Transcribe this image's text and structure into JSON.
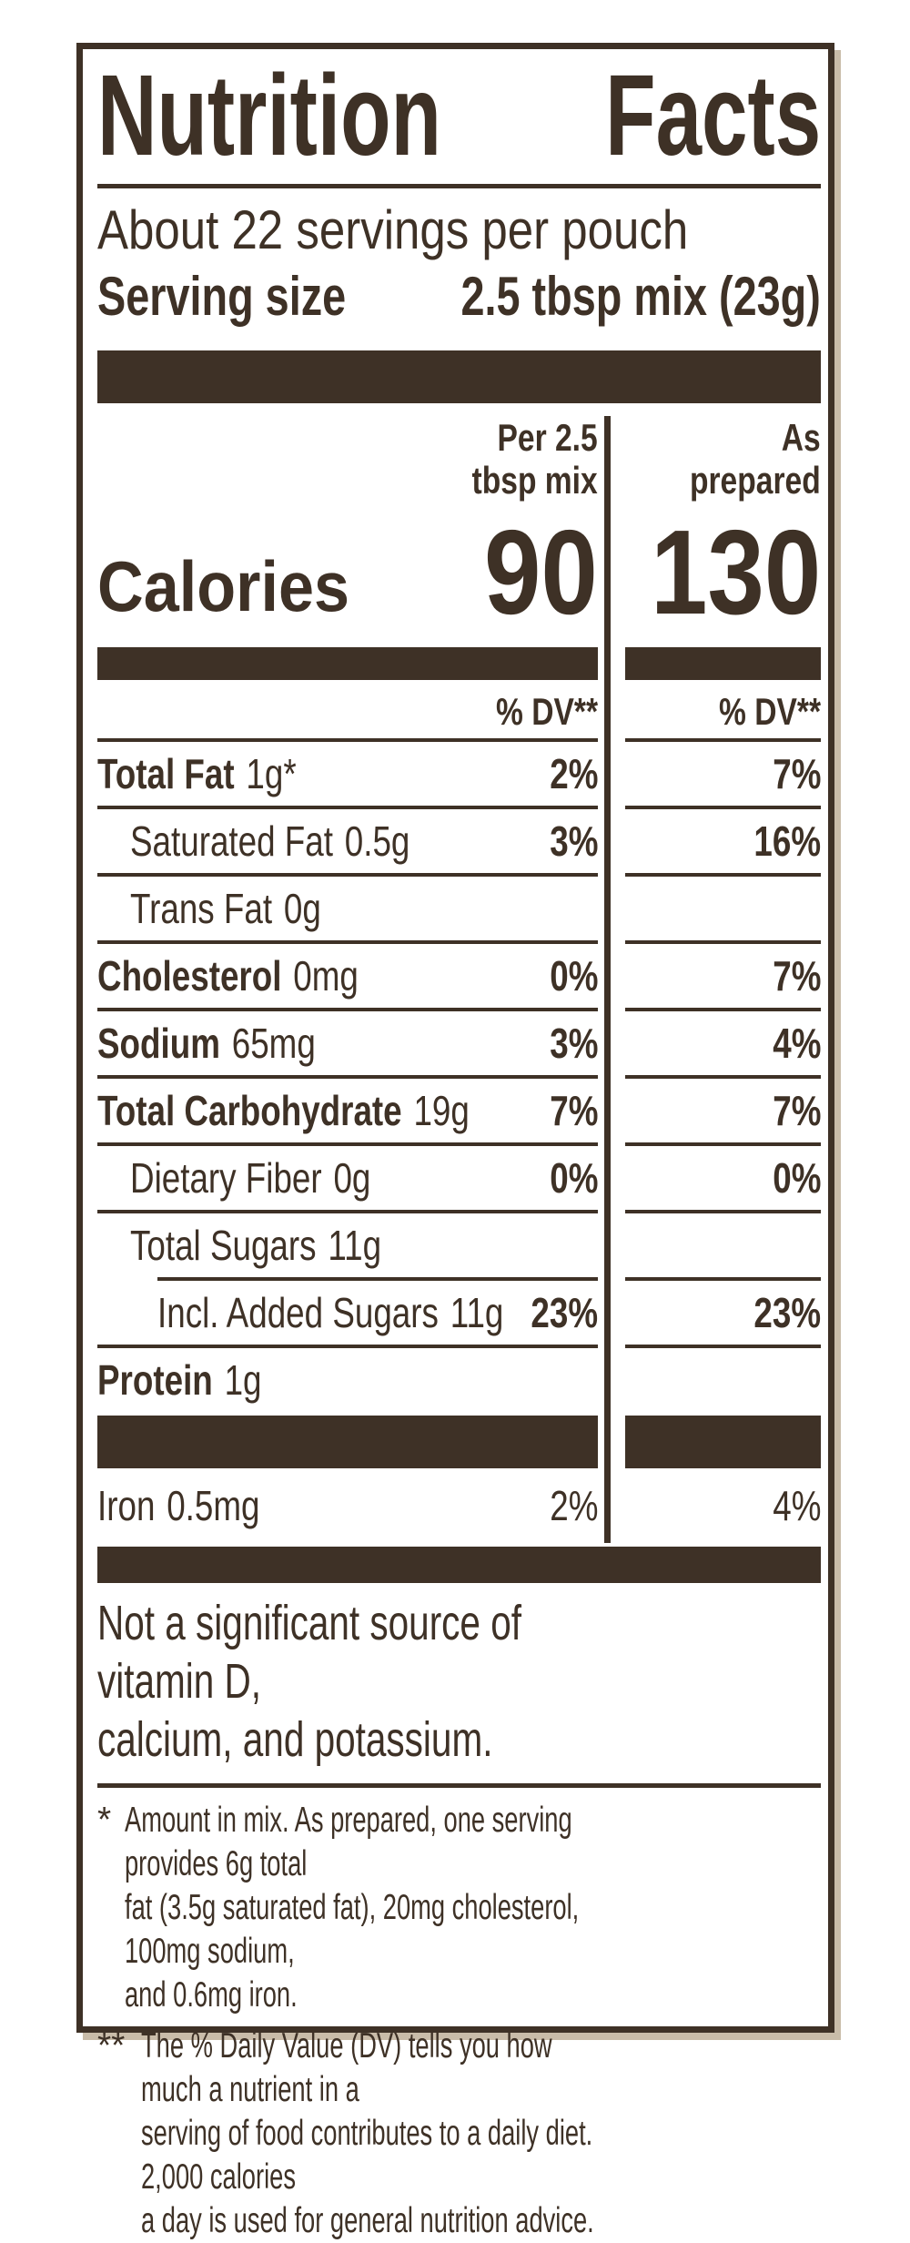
{
  "label": {
    "title": {
      "word1": "Nutrition",
      "word2": "Facts"
    },
    "servings_line": "About 22 servings per pouch",
    "serving_size": {
      "label": "Serving size",
      "value": "2.5 tbsp mix (23g)"
    },
    "columns": {
      "mix": "Per 2.5\ntbsp mix",
      "prepared": "As\nprepared"
    },
    "calories": {
      "label": "Calories",
      "mix": "90",
      "prepared": "130"
    },
    "dv_header": {
      "mix": "% DV**",
      "prepared": "% DV**"
    },
    "rows": [
      {
        "name": "Total Fat",
        "amount": "1g*",
        "bold": true,
        "indent": 0,
        "dv_mix": "2%",
        "dv_prepared": "7%"
      },
      {
        "name": "Saturated Fat",
        "amount": "0.5g",
        "bold": false,
        "indent": 1,
        "dv_mix": "3%",
        "dv_prepared": "16%"
      },
      {
        "name": "Trans Fat",
        "amount": "0g",
        "bold": false,
        "indent": 1,
        "dv_mix": "",
        "dv_prepared": ""
      },
      {
        "name": "Cholesterol",
        "amount": "0mg",
        "bold": true,
        "indent": 0,
        "dv_mix": "0%",
        "dv_prepared": "7%"
      },
      {
        "name": "Sodium",
        "amount": "65mg",
        "bold": true,
        "indent": 0,
        "dv_mix": "3%",
        "dv_prepared": "4%"
      },
      {
        "name": "Total Carbohydrate",
        "amount": "19g",
        "bold": true,
        "indent": 0,
        "dv_mix": "7%",
        "dv_prepared": "7%"
      },
      {
        "name": "Dietary Fiber",
        "amount": "0g",
        "bold": false,
        "indent": 1,
        "dv_mix": "0%",
        "dv_prepared": "0%"
      },
      {
        "name": "Total Sugars",
        "amount": "11g",
        "bold": false,
        "indent": 1,
        "dv_mix": "",
        "dv_prepared": ""
      },
      {
        "name": "Incl. Added Sugars",
        "amount": "11g",
        "bold": false,
        "indent": 2,
        "dv_mix": "23%",
        "dv_prepared": "23%",
        "rule_indent": true
      },
      {
        "name": "Protein",
        "amount": "1g",
        "bold": true,
        "indent": 0,
        "dv_mix": "",
        "dv_prepared": ""
      }
    ],
    "iron_row": {
      "name": "Iron",
      "amount": "0.5mg",
      "dv_mix": "2%",
      "dv_prepared": "4%"
    },
    "not_significant": "Not a significant source of vitamin D,\ncalcium, and potassium.",
    "footnotes": [
      {
        "marker": "*",
        "text": "Amount in mix. As prepared, one serving provides 6g total\nfat (3.5g saturated fat), 20mg cholesterol, 100mg sodium,\nand 0.6mg iron."
      },
      {
        "marker": "**",
        "text": "The % Daily Value (DV) tells you how much a nutrient in a\nserving of food contributes to a daily diet. 2,000 calories\na day is used for general nutrition advice."
      }
    ]
  },
  "colors": {
    "ink": "#3E3126",
    "shadow": "#C9BCA9",
    "background": "#FFFFFF"
  }
}
